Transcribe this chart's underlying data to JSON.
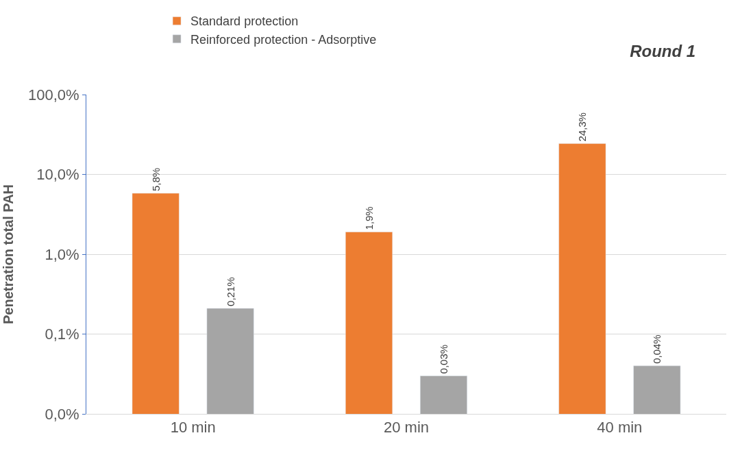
{
  "chart_data": {
    "type": "bar",
    "title": "Round 1",
    "ylabel": "Penetration total PAH",
    "categories": [
      "10 min",
      "20 min",
      "40 min"
    ],
    "series": [
      {
        "name": "Standard protection",
        "color": "#ed7d31",
        "values": [
          5.8,
          1.9,
          24.3
        ],
        "value_labels": [
          "5,8%",
          "1,9%",
          "24,3%"
        ]
      },
      {
        "name": "Reinforced protection - Adsorptive",
        "color": "#a5a5a5",
        "values": [
          0.21,
          0.03,
          0.04
        ],
        "value_labels": [
          "0,21%",
          "0,03%",
          "0,04%"
        ]
      }
    ],
    "log": "y",
    "ylim": [
      0.01,
      100
    ],
    "yticks": [
      {
        "value": 0.01,
        "label": "0,0%"
      },
      {
        "value": 0.1,
        "label": "0,1%"
      },
      {
        "value": 1,
        "label": "1,0%"
      },
      {
        "value": 10,
        "label": "10,0%"
      },
      {
        "value": 100,
        "label": "100,0%"
      }
    ],
    "grid": "y",
    "legend": "top"
  }
}
